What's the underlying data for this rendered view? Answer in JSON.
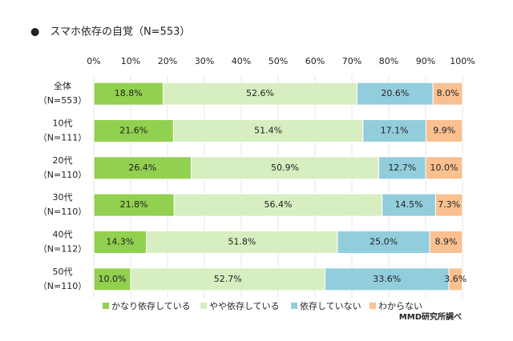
{
  "chart_data": {
    "type": "stacked_bar_horizontal",
    "title": "●　スマホ依存の自覚（N=553）",
    "categories": [
      [
        "全体",
        "（N=553）"
      ],
      [
        "10代",
        "（N=111）"
      ],
      [
        "20代",
        "（N=110）"
      ],
      [
        "30代",
        "（N=110）"
      ],
      [
        "40代",
        "（N=112）"
      ],
      [
        "50代",
        "（N=110）"
      ]
    ],
    "series": [
      {
        "name": "かなり依存している",
        "color": "#92d050",
        "values": [
          18.8,
          21.6,
          26.4,
          21.8,
          14.3,
          10.0
        ],
        "value_labels": [
          "18.8%",
          "21.6%",
          "26.4%",
          "21.8%",
          "14.3%",
          "10.0%"
        ]
      },
      {
        "name": "やや依存している",
        "color": "#d7eec0",
        "values": [
          52.6,
          51.4,
          50.9,
          56.4,
          51.8,
          52.7
        ],
        "value_labels": [
          "52.6%",
          "51.4%",
          "50.9%",
          "56.4%",
          "51.8%",
          "52.7%"
        ]
      },
      {
        "name": "依存していない",
        "color": "#92cddc",
        "values": [
          20.6,
          17.1,
          12.7,
          14.5,
          25.0,
          33.6
        ],
        "value_labels": [
          "20.6%",
          "17.1%",
          "12.7%",
          "14.5%",
          "25.0%",
          "33.6%"
        ]
      },
      {
        "name": "わからない",
        "color": "#fac090",
        "values": [
          8.0,
          9.9,
          10.0,
          7.3,
          8.9,
          3.6
        ],
        "value_labels": [
          "8.0%",
          "9.9%",
          "10.0%",
          "7.3%",
          "8.9%",
          "3.6%"
        ]
      }
    ],
    "xlim": [
      0,
      100
    ],
    "xticks": [
      {
        "value": 0,
        "label": "0%"
      },
      {
        "value": 10,
        "label": "10%"
      },
      {
        "value": 20,
        "label": "20%"
      },
      {
        "value": 30,
        "label": "30%"
      },
      {
        "value": 40,
        "label": "40%"
      },
      {
        "value": 50,
        "label": "50%"
      },
      {
        "value": 60,
        "label": "60%"
      },
      {
        "value": 70,
        "label": "70%"
      },
      {
        "value": 80,
        "label": "80%"
      },
      {
        "value": 90,
        "label": "90%"
      },
      {
        "value": 100,
        "label": "100%"
      }
    ],
    "source": "MMD研究所調べ"
  }
}
